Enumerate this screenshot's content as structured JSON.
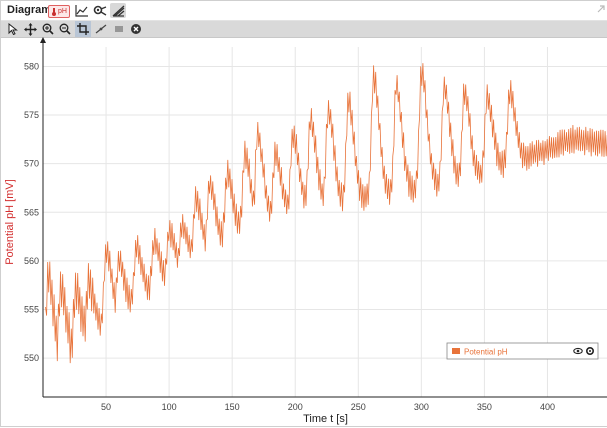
{
  "window": {
    "title": "Diagram",
    "sensor_badge": "pH"
  },
  "title_icons": [
    "line-chart-icon",
    "settings-analysis-icon",
    "ruler-icon"
  ],
  "tools": [
    "select-arrow-icon",
    "pan-move-icon",
    "zoom-in-icon",
    "zoom-out-icon",
    "zoom-box-icon",
    "tangent-icon",
    "average-icon",
    "clear-icon"
  ],
  "colors": {
    "series": "#e8733a",
    "toolbar": "#d9d9d9",
    "accent": "#d32f2f"
  },
  "chart_data": {
    "type": "line",
    "xlabel": "Time t [s]",
    "ylabel": "Potential pH [mV]",
    "xlim": [
      0,
      448
    ],
    "ylim": [
      546,
      582
    ],
    "xticks": [
      50,
      100,
      150,
      200,
      250,
      300,
      350,
      400
    ],
    "yticks": [
      550,
      555,
      560,
      565,
      570,
      575,
      580
    ],
    "grid": true,
    "legend_position": "bottom-right",
    "series": [
      {
        "name": "Potential pH",
        "color": "#e8733a",
        "baseline": [
          [
            2,
            549
          ],
          [
            20,
            550
          ],
          [
            40,
            552.5
          ],
          [
            60,
            554.5
          ],
          [
            80,
            556.5
          ],
          [
            100,
            558.5
          ],
          [
            120,
            560.5
          ],
          [
            140,
            562
          ],
          [
            160,
            563.5
          ],
          [
            180,
            564.5
          ],
          [
            200,
            565.5
          ],
          [
            220,
            566
          ],
          [
            240,
            566
          ],
          [
            260,
            566.5
          ],
          [
            280,
            567
          ],
          [
            300,
            567.5
          ],
          [
            320,
            568
          ],
          [
            340,
            568.5
          ],
          [
            360,
            569.5
          ],
          [
            380,
            570.5
          ],
          [
            400,
            571.5
          ],
          [
            420,
            572.5
          ],
          [
            448,
            572
          ]
        ],
        "peaks": [
          [
            4,
            558.5
          ],
          [
            14,
            557
          ],
          [
            26,
            557
          ],
          [
            36,
            558
          ],
          [
            50,
            561
          ],
          [
            60,
            560
          ],
          [
            74,
            561.5
          ],
          [
            88,
            562
          ],
          [
            100,
            563
          ],
          [
            110,
            563.5
          ],
          [
            121,
            566.5
          ],
          [
            132,
            568
          ],
          [
            146,
            569
          ],
          [
            160,
            571
          ],
          [
            170,
            573
          ],
          [
            184,
            571
          ],
          [
            198,
            573
          ],
          [
            212,
            574.5
          ],
          [
            226,
            575.5
          ],
          [
            242,
            576.5
          ],
          [
            262,
            579
          ],
          [
            280,
            578
          ],
          [
            300,
            579.5
          ],
          [
            318,
            578
          ],
          [
            334,
            577.5
          ],
          [
            352,
            577
          ],
          [
            370,
            577.5
          ]
        ]
      }
    ]
  }
}
